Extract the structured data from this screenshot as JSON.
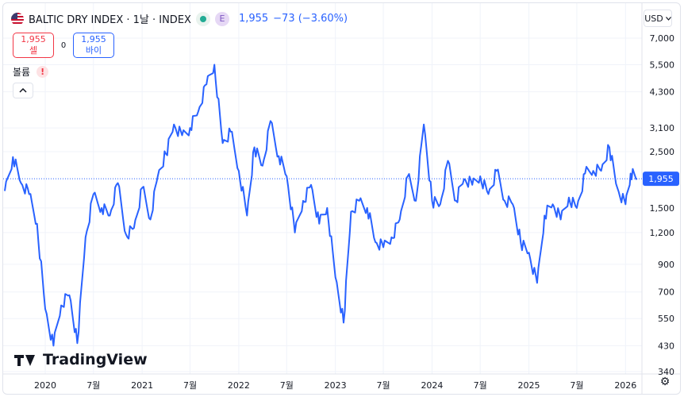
{
  "header": {
    "title": "BALTIC DRY INDEX · 1날 · INDEX",
    "badge_e": "E",
    "last": "1,955",
    "change": "−73 (−3.60%)"
  },
  "trade": {
    "sell_price": "1,955",
    "sell_label": "셀",
    "spread": "0",
    "buy_price": "1,955",
    "buy_label": "바이"
  },
  "volume_label": "볼륨",
  "volume_warning": "!",
  "collapse_icon": "chevron-up-icon",
  "currency": "USD",
  "logo_text": "TradingView",
  "colors": {
    "line": "#2962ff",
    "last_price_tag": "#2962ff",
    "sell": "#f23645",
    "buy": "#2962ff",
    "grid": "#f0f3fa"
  },
  "chart_data": {
    "type": "line",
    "y_scale": "log",
    "ylim": [
      340,
      7000
    ],
    "last_value": 1955,
    "last_label": "1,955",
    "y_ticks": [
      {
        "value": 7000,
        "label": "7,000"
      },
      {
        "value": 5500,
        "label": "5,500"
      },
      {
        "value": 4300,
        "label": "4,300"
      },
      {
        "value": 3100,
        "label": "3,100"
      },
      {
        "value": 2500,
        "label": "2,500"
      },
      {
        "value": 1500,
        "label": "1,500"
      },
      {
        "value": 1200,
        "label": "1,200"
      },
      {
        "value": 900,
        "label": "900"
      },
      {
        "value": 700,
        "label": "700"
      },
      {
        "value": 550,
        "label": "550"
      },
      {
        "value": 430,
        "label": "430"
      },
      {
        "value": 340,
        "label": "340"
      }
    ],
    "x_ticks": [
      {
        "date": "2020-01-01",
        "label": "2020"
      },
      {
        "date": "2020-07-01",
        "label": "7월"
      },
      {
        "date": "2021-01-01",
        "label": "2021"
      },
      {
        "date": "2021-07-01",
        "label": "7월"
      },
      {
        "date": "2022-01-01",
        "label": "2022"
      },
      {
        "date": "2022-07-01",
        "label": "7월"
      },
      {
        "date": "2023-01-01",
        "label": "2023"
      },
      {
        "date": "2023-07-01",
        "label": "7월"
      },
      {
        "date": "2024-01-01",
        "label": "2024"
      },
      {
        "date": "2024-07-01",
        "label": "7월"
      },
      {
        "date": "2025-01-01",
        "label": "2025"
      },
      {
        "date": "2025-07-01",
        "label": "7월"
      },
      {
        "date": "2026-01-01",
        "label": "2026"
      }
    ],
    "x_range": [
      "2019-08-01",
      "2026-02-14"
    ],
    "series": [
      {
        "points": [
          [
            "2019-08-01",
            1750
          ],
          [
            "2019-09-01",
            2380
          ],
          [
            "2019-10-01",
            1880
          ],
          [
            "2019-11-01",
            1700
          ],
          [
            "2019-12-01",
            1300
          ],
          [
            "2020-01-01",
            600
          ],
          [
            "2020-02-01",
            430
          ],
          [
            "2020-03-01",
            620
          ],
          [
            "2020-04-01",
            680
          ],
          [
            "2020-05-01",
            440
          ],
          [
            "2020-06-01",
            1150
          ],
          [
            "2020-07-01",
            1700
          ],
          [
            "2020-08-01",
            1500
          ],
          [
            "2020-09-01",
            1400
          ],
          [
            "2020-10-01",
            1880
          ],
          [
            "2020-11-01",
            1180
          ],
          [
            "2020-12-01",
            1250
          ],
          [
            "2021-01-01",
            1800
          ],
          [
            "2021-02-01",
            1350
          ],
          [
            "2021-03-01",
            2000
          ],
          [
            "2021-04-01",
            2450
          ],
          [
            "2021-05-01",
            3200
          ],
          [
            "2021-06-01",
            2900
          ],
          [
            "2021-07-01",
            3100
          ],
          [
            "2021-08-01",
            3600
          ],
          [
            "2021-09-01",
            4600
          ],
          [
            "2021-10-01",
            5500
          ],
          [
            "2021-11-01",
            2700
          ],
          [
            "2021-12-01",
            3000
          ],
          [
            "2022-01-01",
            2100
          ],
          [
            "2022-02-01",
            1400
          ],
          [
            "2022-03-01",
            2600
          ],
          [
            "2022-04-01",
            2200
          ],
          [
            "2022-05-01",
            3300
          ],
          [
            "2022-06-01",
            2400
          ],
          [
            "2022-07-01",
            2000
          ],
          [
            "2022-08-01",
            1200
          ],
          [
            "2022-09-01",
            1600
          ],
          [
            "2022-10-01",
            1850
          ],
          [
            "2022-11-01",
            1300
          ],
          [
            "2022-12-01",
            1500
          ],
          [
            "2023-01-01",
            800
          ],
          [
            "2023-02-01",
            530
          ],
          [
            "2023-03-01",
            1450
          ],
          [
            "2023-04-01",
            1600
          ],
          [
            "2023-05-01",
            1500
          ],
          [
            "2023-06-01",
            1100
          ],
          [
            "2023-07-01",
            1050
          ],
          [
            "2023-08-01",
            1150
          ],
          [
            "2023-09-01",
            1350
          ],
          [
            "2023-10-01",
            2000
          ],
          [
            "2023-11-01",
            1600
          ],
          [
            "2023-12-01",
            3200
          ],
          [
            "2024-01-01",
            1600
          ],
          [
            "2024-02-01",
            1550
          ],
          [
            "2024-03-01",
            2300
          ],
          [
            "2024-04-01",
            1600
          ],
          [
            "2024-05-01",
            1950
          ],
          [
            "2024-06-01",
            1850
          ],
          [
            "2024-07-01",
            2000
          ],
          [
            "2024-08-01",
            1700
          ],
          [
            "2024-09-01",
            2100
          ],
          [
            "2024-10-01",
            1600
          ],
          [
            "2024-11-01",
            1550
          ],
          [
            "2024-12-01",
            1100
          ],
          [
            "2025-01-01",
            1000
          ],
          [
            "2025-02-01",
            760
          ],
          [
            "2025-03-01",
            1400
          ],
          [
            "2025-04-01",
            1550
          ],
          [
            "2025-05-01",
            1350
          ],
          [
            "2025-06-01",
            1650
          ],
          [
            "2025-07-01",
            1500
          ],
          [
            "2025-08-01",
            2050
          ],
          [
            "2025-09-01",
            2100
          ],
          [
            "2025-10-01",
            2100
          ],
          [
            "2025-11-01",
            2600
          ],
          [
            "2025-12-01",
            1800
          ],
          [
            "2026-01-01",
            1550
          ],
          [
            "2026-01-20",
            2050
          ],
          [
            "2026-02-14",
            1955
          ]
        ]
      }
    ]
  }
}
